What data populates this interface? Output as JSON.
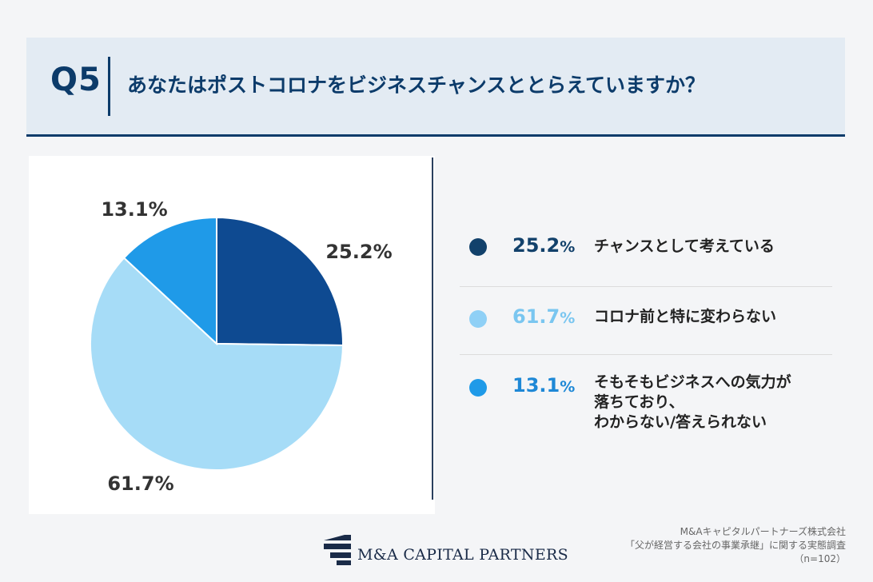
{
  "header": {
    "question_no": "Q5",
    "question": "あなたはポストコロナをビジネスチャンスととらえていますか？"
  },
  "chart_data": {
    "type": "pie",
    "title": "",
    "categories": [
      "チャンスとして考えている",
      "コロナ前と特に変わらない",
      "そもそもビジネスへの気力が落ちており、わからない/答えられない"
    ],
    "values": [
      25.2,
      61.7,
      13.1
    ],
    "labels": [
      "25.2%",
      "61.7%",
      "13.1%"
    ],
    "colors": [
      "#0e4a91",
      "#a6dcf7",
      "#1f9ae8"
    ],
    "legend": "right"
  },
  "legend": [
    {
      "value": "25.2",
      "unit": "%",
      "lines": [
        "チャンスとして考えている"
      ],
      "dot_color": "#12416b",
      "text_color": "#12416b"
    },
    {
      "value": "61.7",
      "unit": "%",
      "lines": [
        "コロナ前と特に変わらない"
      ],
      "dot_color": "#8fd0f6",
      "text_color": "#7ac6f0"
    },
    {
      "value": "13.1",
      "unit": "%",
      "lines": [
        "そもそもビジネスへの気力が",
        "落ちており、",
        "わからない/答えられない"
      ],
      "dot_color": "#1f9ae8",
      "text_color": "#1e88d6"
    }
  ],
  "footer": {
    "logo_text": "M&A CAPITAL PARTNERS",
    "source_lines": [
      "M&Aキャピタルパートナーズ株式会社",
      "「父が経営する会社の事業承継」に関する実態調査",
      "（n=102）"
    ]
  }
}
